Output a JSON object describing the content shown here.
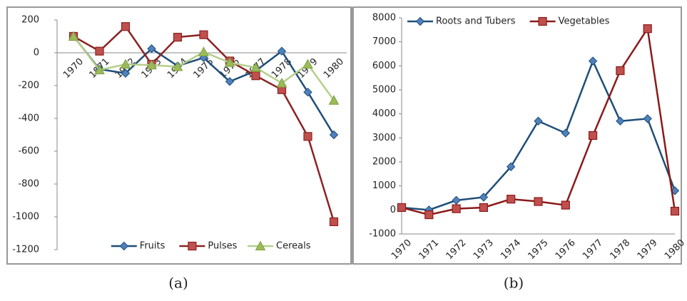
{
  "chart_data": [
    {
      "type": "line",
      "caption": "(a)",
      "categories": [
        "1970",
        "1971",
        "1972",
        "1973",
        "1974",
        "1975",
        "1976",
        "1977",
        "1978",
        "1979",
        "1980"
      ],
      "series": [
        {
          "name": "Fruits",
          "color": "#1f4e79",
          "marker": "diamond",
          "values": [
            100,
            -100,
            -125,
            25,
            -80,
            -30,
            -175,
            -110,
            10,
            -240,
            -500
          ]
        },
        {
          "name": "Pulses",
          "color": "#8b2323",
          "marker": "square",
          "values": [
            100,
            10,
            160,
            -70,
            95,
            110,
            -50,
            -140,
            -225,
            -510,
            -1030
          ]
        },
        {
          "name": "Cereals",
          "color": "#b5cf8a",
          "marker": "triangle",
          "values": [
            100,
            -105,
            -70,
            -75,
            -85,
            5,
            -60,
            -90,
            -185,
            -70,
            -290
          ]
        }
      ],
      "ylim": [
        -1200,
        200
      ],
      "yticks": [
        -1200,
        -1000,
        -800,
        -600,
        -400,
        -200,
        0,
        200
      ],
      "grid": false,
      "legend": "bottom"
    },
    {
      "type": "line",
      "caption": "(b)",
      "categories": [
        "1970",
        "1971",
        "1972",
        "1973",
        "1974",
        "1975",
        "1976",
        "1977",
        "1978",
        "1979",
        "1980"
      ],
      "series": [
        {
          "name": "Roots and Tubers",
          "color": "#1f4e79",
          "marker": "diamond",
          "values": [
            100,
            0,
            400,
            530,
            1800,
            3700,
            3200,
            6200,
            3700,
            3800,
            800
          ]
        },
        {
          "name": "Vegetables",
          "color": "#8b1a1a",
          "marker": "square",
          "values": [
            100,
            -200,
            50,
            100,
            450,
            350,
            200,
            3100,
            5800,
            7550,
            -50
          ]
        }
      ],
      "ylim": [
        -1000,
        8000
      ],
      "yticks": [
        -1000,
        0,
        1000,
        2000,
        3000,
        4000,
        5000,
        6000,
        7000,
        8000
      ],
      "grid": false,
      "legend": "top"
    }
  ]
}
